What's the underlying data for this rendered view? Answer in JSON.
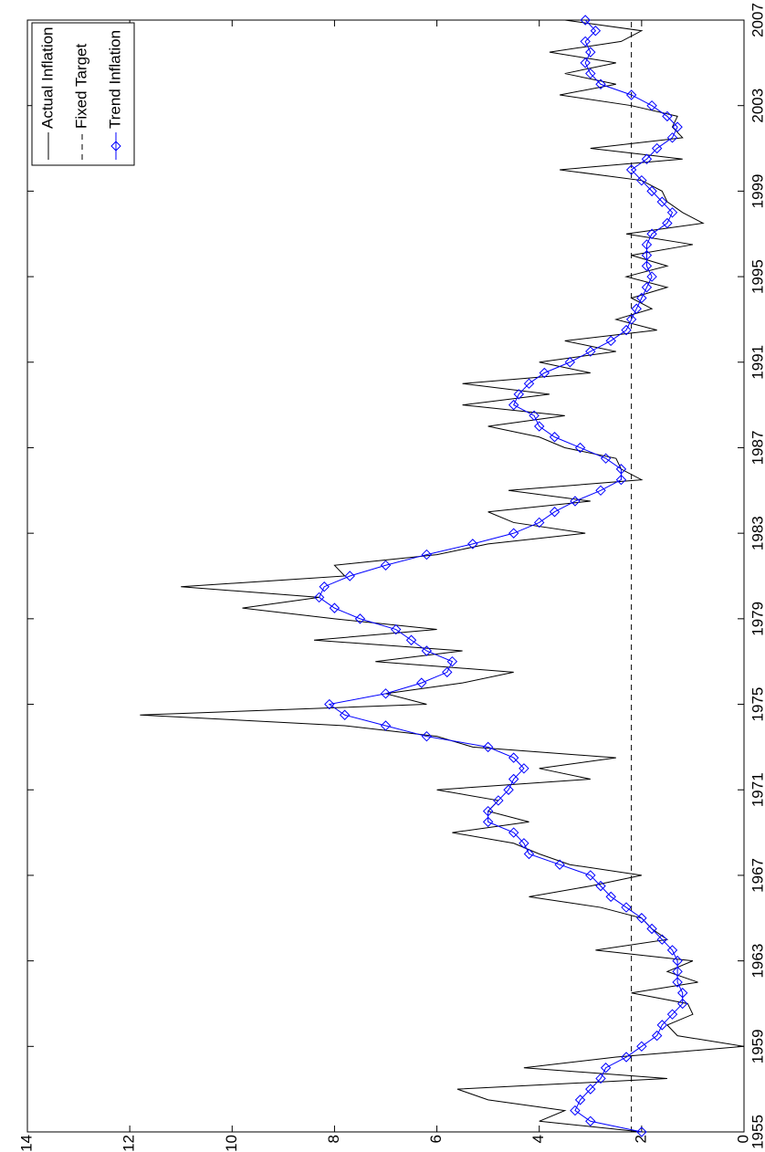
{
  "chart_data": {
    "type": "line",
    "xlim": [
      1955,
      2007
    ],
    "ylim": [
      0,
      14
    ],
    "xticks": [
      1955,
      1959,
      1963,
      1967,
      1971,
      1975,
      1979,
      1983,
      1987,
      1991,
      1995,
      1999,
      2003,
      2007
    ],
    "yticks": [
      0,
      2,
      4,
      6,
      8,
      10,
      12,
      14
    ],
    "legend": "upper right",
    "rotation": -90,
    "x": [
      1955,
      1955.5,
      1956,
      1956.5,
      1957,
      1957.5,
      1958,
      1958.5,
      1959,
      1959.5,
      1960,
      1960.5,
      1961,
      1961.5,
      1962,
      1962.5,
      1963,
      1963.5,
      1964,
      1964.5,
      1965,
      1965.5,
      1966,
      1966.5,
      1967,
      1967.5,
      1968,
      1968.5,
      1969,
      1969.5,
      1970,
      1970.5,
      1971,
      1971.5,
      1972,
      1972.5,
      1973,
      1973.5,
      1974,
      1974.5,
      1975,
      1975.5,
      1976,
      1976.5,
      1977,
      1977.5,
      1978,
      1978.5,
      1979,
      1979.5,
      1980,
      1980.5,
      1981,
      1981.5,
      1982,
      1982.5,
      1983,
      1983.5,
      1984,
      1984.5,
      1985,
      1985.5,
      1986,
      1986.5,
      1987,
      1987.5,
      1988,
      1988.5,
      1989,
      1989.5,
      1990,
      1990.5,
      1991,
      1991.5,
      1992,
      1992.5,
      1993,
      1993.5,
      1994,
      1994.5,
      1995,
      1995.5,
      1996,
      1996.5,
      1997,
      1997.5,
      1998,
      1998.5,
      1999,
      1999.5,
      2000,
      2000.5,
      2001,
      2001.5,
      2002,
      2002.5,
      2003,
      2003.5,
      2004,
      2004.5,
      2005,
      2005.5,
      2006,
      2006.5,
      2007
    ],
    "series": [
      {
        "name": "Actual Inflation",
        "color": "#000000",
        "dash": false,
        "marker": null,
        "values": [
          2.0,
          4.0,
          3.5,
          5.0,
          5.6,
          1.5,
          4.3,
          2.5,
          0.0,
          1.3,
          1.5,
          1.0,
          1.1,
          2.2,
          0.9,
          1.5,
          1.0,
          2.9,
          1.5,
          1.8,
          2.0,
          2.8,
          4.2,
          3.0,
          2.0,
          3.4,
          4.0,
          4.5,
          5.7,
          4.2,
          5.0,
          4.8,
          6.0,
          3.0,
          4.0,
          2.5,
          5.3,
          6.0,
          7.8,
          11.8,
          6.2,
          7.0,
          5.5,
          4.5,
          7.2,
          5.5,
          8.4,
          6.0,
          8.0,
          9.8,
          8.3,
          11.0,
          7.8,
          8.0,
          6.0,
          5.0,
          3.1,
          4.5,
          5.0,
          3.0,
          4.6,
          2.0,
          2.4,
          2.5,
          3.5,
          4.0,
          5.0,
          3.5,
          5.5,
          3.8,
          5.5,
          3.0,
          4.0,
          2.5,
          3.5,
          1.7,
          2.5,
          1.8,
          2.2,
          1.5,
          2.3,
          1.5,
          2.2,
          1.0,
          2.3,
          0.8,
          1.2,
          1.5,
          1.6,
          2.0,
          3.6,
          1.2,
          3.0,
          1.2,
          1.4,
          1.3,
          2.2,
          3.6,
          2.5,
          3.5,
          2.5,
          3.8,
          2.4,
          2.0,
          3.5
        ]
      },
      {
        "name": "Fixed Target",
        "color": "#000000",
        "dash": true,
        "marker": null,
        "x": [
          1955,
          2007
        ],
        "values": [
          2.2,
          2.2
        ]
      },
      {
        "name": "Trend Inflation",
        "color": "#0000ff",
        "dash": false,
        "marker": "diamond",
        "values": [
          2.0,
          3.0,
          3.3,
          3.2,
          3.0,
          2.8,
          2.7,
          2.3,
          2.0,
          1.7,
          1.6,
          1.4,
          1.2,
          1.2,
          1.3,
          1.3,
          1.3,
          1.4,
          1.6,
          1.8,
          2.0,
          2.3,
          2.6,
          2.8,
          3.0,
          3.6,
          4.2,
          4.3,
          4.5,
          5.0,
          5.0,
          4.8,
          4.6,
          4.5,
          4.3,
          4.5,
          5.0,
          6.2,
          7.0,
          7.8,
          8.1,
          7.0,
          6.3,
          5.8,
          5.7,
          6.2,
          6.5,
          6.8,
          7.5,
          8.0,
          8.3,
          8.2,
          7.7,
          7.0,
          6.2,
          5.3,
          4.5,
          4.0,
          3.7,
          3.3,
          2.8,
          2.4,
          2.4,
          2.7,
          3.2,
          3.7,
          4.0,
          4.1,
          4.5,
          4.4,
          4.2,
          3.9,
          3.4,
          3.0,
          2.6,
          2.3,
          2.2,
          2.1,
          2.0,
          1.9,
          1.8,
          1.9,
          1.9,
          1.9,
          1.8,
          1.5,
          1.4,
          1.6,
          1.8,
          2.0,
          2.2,
          1.9,
          1.7,
          1.4,
          1.3,
          1.5,
          1.8,
          2.2,
          2.8,
          3.0,
          3.1,
          3.0,
          3.1,
          2.9,
          3.1
        ]
      }
    ]
  }
}
